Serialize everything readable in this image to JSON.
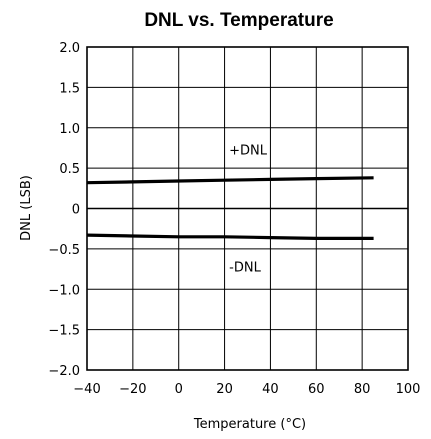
{
  "chart_data": {
    "type": "line",
    "title": "DNL vs. Temperature",
    "xlabel": "Temperature (°C)",
    "ylabel": "DNL (LSB)",
    "xlim": [
      -40,
      100
    ],
    "ylim": [
      -2.0,
      2.0
    ],
    "x_ticks": [
      -40,
      -20,
      0,
      20,
      40,
      60,
      80,
      100
    ],
    "x_tick_labels": [
      "−40",
      "−20",
      "0",
      "20",
      "40",
      "60",
      "80",
      "100"
    ],
    "y_ticks": [
      2.0,
      1.5,
      1.0,
      0.5,
      0,
      -0.5,
      -1.0,
      -1.5,
      -2.0
    ],
    "y_tick_labels": [
      "2.0",
      "1.5",
      "1.0",
      "0.5",
      "0",
      "−0.5",
      "−1.0",
      "−1.5",
      "−2.0"
    ],
    "grid": true,
    "series": [
      {
        "name": "+DNL",
        "x": [
          -40,
          -20,
          0,
          20,
          40,
          60,
          85
        ],
        "y": [
          0.32,
          0.33,
          0.34,
          0.35,
          0.36,
          0.37,
          0.38
        ]
      },
      {
        "name": "-DNL",
        "x": [
          -40,
          -20,
          0,
          20,
          40,
          60,
          85
        ],
        "y": [
          -0.33,
          -0.34,
          -0.35,
          -0.35,
          -0.36,
          -0.37,
          -0.37
        ]
      }
    ],
    "annotations": [
      {
        "text": "+DNL",
        "x": 22,
        "y": 0.67,
        "series": 0
      },
      {
        "text": "-DNL",
        "x": 22,
        "y": -0.78,
        "series": 1
      }
    ],
    "colors": {
      "line": "#000000",
      "grid": "#000000",
      "background": "#ffffff"
    }
  }
}
